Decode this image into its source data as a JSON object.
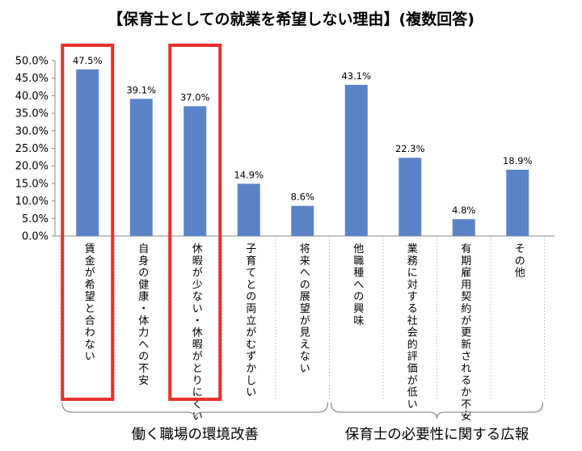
{
  "chart_data": {
    "type": "bar",
    "title": "【保育士としての就業を希望しない理由】(複数回答)",
    "categories": [
      "賃金が希望と合わない",
      "自身の健康・体力への不安",
      "休暇が少ない・休暇がとりにくい",
      "子育てとの両立がむずかしい",
      "将来への展望が見えない",
      "他職種への興味",
      "業務に対する社会的評価が低い",
      "有期雇用契約が更新されるか不安",
      "その他"
    ],
    "values": [
      47.5,
      39.1,
      37.0,
      14.9,
      8.6,
      43.1,
      22.3,
      4.8,
      18.9
    ],
    "value_labels": [
      "47.5%",
      "39.1%",
      "37.0%",
      "14.9%",
      "8.6%",
      "43.1%",
      "22.3%",
      "4.8%",
      "18.9%"
    ],
    "y_ticks": [
      "0.0%",
      "5.0%",
      "10.0%",
      "15.0%",
      "20.0%",
      "25.0%",
      "30.0%",
      "35.0%",
      "40.0%",
      "45.0%",
      "50.0%"
    ],
    "ylim": [
      0,
      50
    ],
    "grid": false,
    "bar_color": "#5b84c8",
    "highlight_color": "#e8302a",
    "highlighted_indices": [
      0,
      2
    ],
    "groups": [
      {
        "label": "働く職場の環境改善",
        "range": [
          0,
          4
        ]
      },
      {
        "label": "保育士の必要性に関する広報",
        "range": [
          5,
          8
        ]
      }
    ]
  }
}
